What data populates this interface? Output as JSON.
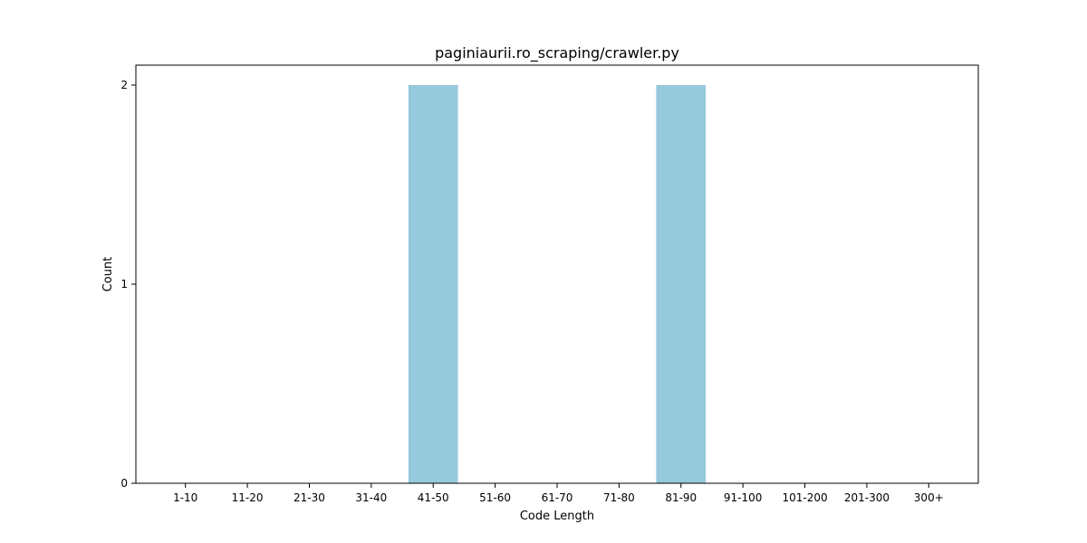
{
  "chart_data": {
    "type": "bar",
    "title": "paginiaurii.ro_scraping/crawler.py",
    "xlabel": "Code Length",
    "ylabel": "Count",
    "categories": [
      "1-10",
      "11-20",
      "21-30",
      "31-40",
      "41-50",
      "51-60",
      "61-70",
      "71-80",
      "81-90",
      "91-100",
      "101-200",
      "201-300",
      "300+"
    ],
    "values": [
      0,
      0,
      0,
      0,
      2,
      0,
      0,
      0,
      2,
      0,
      0,
      0,
      0
    ],
    "ylim": [
      0,
      2.1
    ],
    "yticks": [
      0,
      1,
      2
    ],
    "grid": false,
    "bar_color": "#96c9dc"
  }
}
